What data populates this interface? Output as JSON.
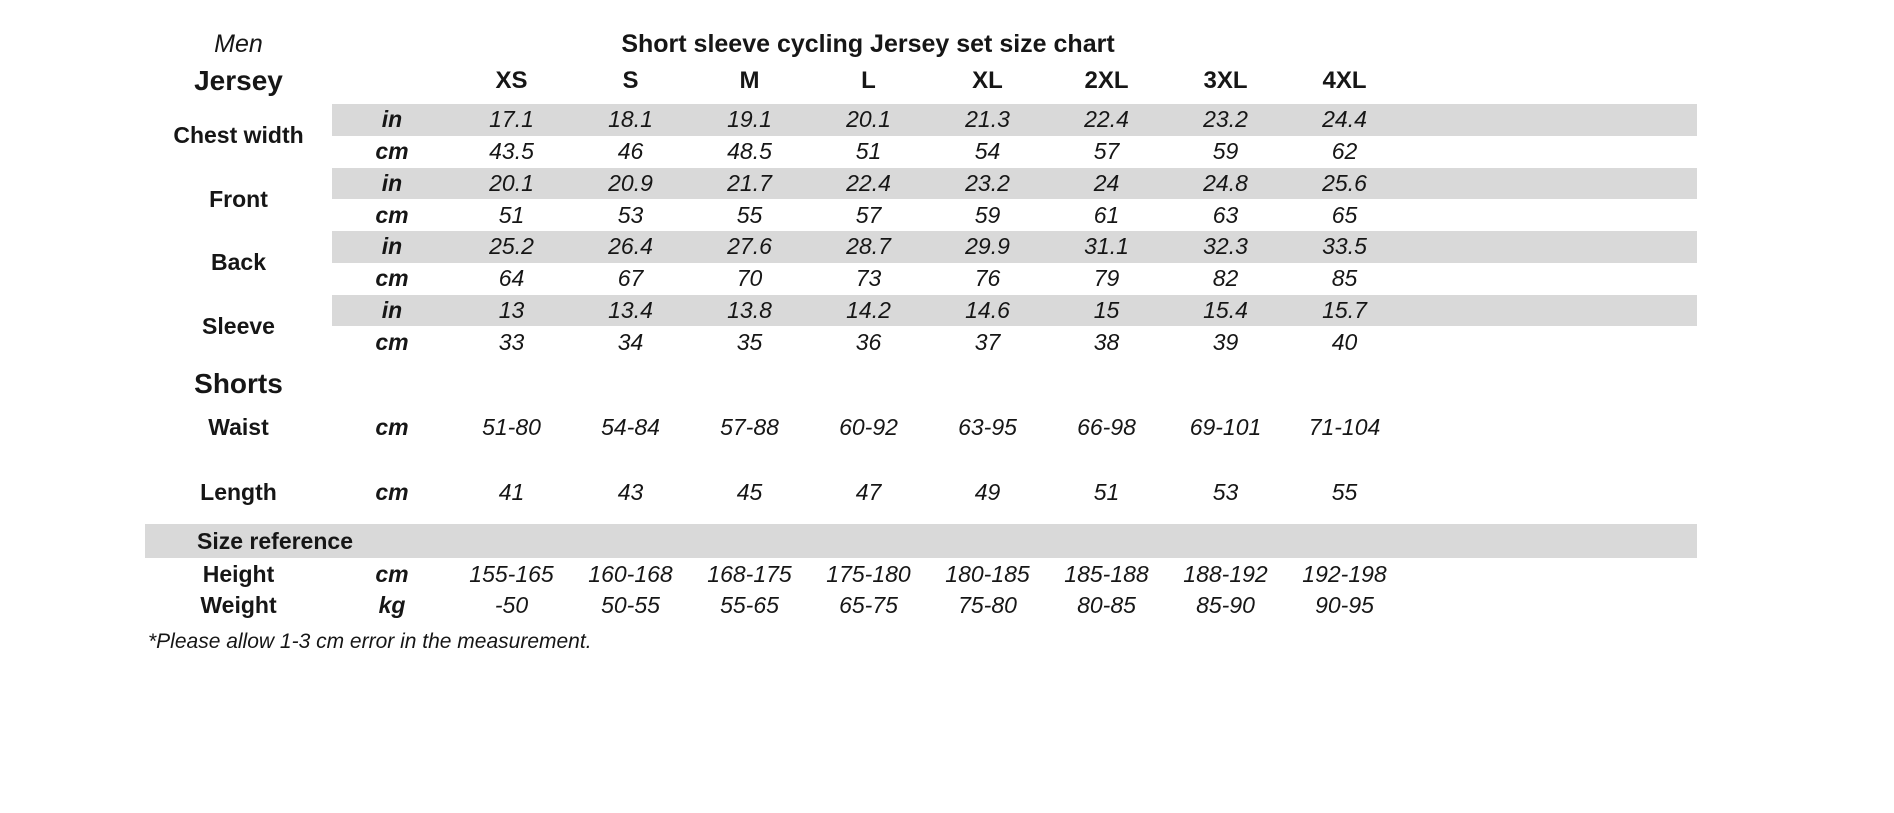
{
  "title": "Short sleeve cycling Jersey set size chart",
  "gender": "Men",
  "sizes": [
    "XS",
    "S",
    "M",
    "L",
    "XL",
    "2XL",
    "3XL",
    "4XL"
  ],
  "units": {
    "in": "in",
    "cm": "cm",
    "kg": "kg"
  },
  "jersey": {
    "label": "Jersey",
    "chest": {
      "label": "Chest width",
      "in": [
        "17.1",
        "18.1",
        "19.1",
        "20.1",
        "21.3",
        "22.4",
        "23.2",
        "24.4"
      ],
      "cm": [
        "43.5",
        "46",
        "48.5",
        "51",
        "54",
        "57",
        "59",
        "62"
      ]
    },
    "front": {
      "label": "Front",
      "in": [
        "20.1",
        "20.9",
        "21.7",
        "22.4",
        "23.2",
        "24",
        "24.8",
        "25.6"
      ],
      "cm": [
        "51",
        "53",
        "55",
        "57",
        "59",
        "61",
        "63",
        "65"
      ]
    },
    "back": {
      "label": "Back",
      "in": [
        "25.2",
        "26.4",
        "27.6",
        "28.7",
        "29.9",
        "31.1",
        "32.3",
        "33.5"
      ],
      "cm": [
        "64",
        "67",
        "70",
        "73",
        "76",
        "79",
        "82",
        "85"
      ]
    },
    "sleeve": {
      "label": "Sleeve",
      "in": [
        "13",
        "13.4",
        "13.8",
        "14.2",
        "14.6",
        "15",
        "15.4",
        "15.7"
      ],
      "cm": [
        "33",
        "34",
        "35",
        "36",
        "37",
        "38",
        "39",
        "40"
      ]
    }
  },
  "shorts": {
    "label": "Shorts",
    "waist": {
      "label": "Waist",
      "unit": "cm",
      "values": [
        "51-80",
        "54-84",
        "57-88",
        "60-92",
        "63-95",
        "66-98",
        "69-101",
        "71-104"
      ]
    },
    "length": {
      "label": "Length",
      "unit": "cm",
      "values": [
        "41",
        "43",
        "45",
        "47",
        "49",
        "51",
        "53",
        "55"
      ]
    }
  },
  "reference": {
    "label": "Size reference",
    "height": {
      "label": "Height",
      "unit": "cm",
      "values": [
        "155-165",
        "160-168",
        "168-175",
        "175-180",
        "180-185",
        "185-188",
        "188-192",
        "192-198"
      ]
    },
    "weight": {
      "label": "Weight",
      "unit": "kg",
      "values": [
        "-50",
        "50-55",
        "55-65",
        "65-75",
        "75-80",
        "80-85",
        "85-90",
        "90-95"
      ]
    }
  },
  "footnote": "*Please allow 1-3 cm error in the measurement.",
  "chart_data": {
    "type": "table",
    "title": "Short sleeve cycling Jersey set size chart",
    "columns": [
      "XS",
      "S",
      "M",
      "L",
      "XL",
      "2XL",
      "3XL",
      "4XL"
    ],
    "sections": [
      {
        "section": "Jersey",
        "rows": [
          {
            "label": "Chest width",
            "unit": "in",
            "values": [
              17.1,
              18.1,
              19.1,
              20.1,
              21.3,
              22.4,
              23.2,
              24.4
            ]
          },
          {
            "label": "Chest width",
            "unit": "cm",
            "values": [
              43.5,
              46,
              48.5,
              51,
              54,
              57,
              59,
              62
            ]
          },
          {
            "label": "Front",
            "unit": "in",
            "values": [
              20.1,
              20.9,
              21.7,
              22.4,
              23.2,
              24,
              24.8,
              25.6
            ]
          },
          {
            "label": "Front",
            "unit": "cm",
            "values": [
              51,
              53,
              55,
              57,
              59,
              61,
              63,
              65
            ]
          },
          {
            "label": "Back",
            "unit": "in",
            "values": [
              25.2,
              26.4,
              27.6,
              28.7,
              29.9,
              31.1,
              32.3,
              33.5
            ]
          },
          {
            "label": "Back",
            "unit": "cm",
            "values": [
              64,
              67,
              70,
              73,
              76,
              79,
              82,
              85
            ]
          },
          {
            "label": "Sleeve",
            "unit": "in",
            "values": [
              13,
              13.4,
              13.8,
              14.2,
              14.6,
              15,
              15.4,
              15.7
            ]
          },
          {
            "label": "Sleeve",
            "unit": "cm",
            "values": [
              33,
              34,
              35,
              36,
              37,
              38,
              39,
              40
            ]
          }
        ]
      },
      {
        "section": "Shorts",
        "rows": [
          {
            "label": "Waist",
            "unit": "cm",
            "values": [
              "51-80",
              "54-84",
              "57-88",
              "60-92",
              "63-95",
              "66-98",
              "69-101",
              "71-104"
            ]
          },
          {
            "label": "Length",
            "unit": "cm",
            "values": [
              41,
              43,
              45,
              47,
              49,
              51,
              53,
              55
            ]
          }
        ]
      },
      {
        "section": "Size reference",
        "rows": [
          {
            "label": "Height",
            "unit": "cm",
            "values": [
              "155-165",
              "160-168",
              "168-175",
              "175-180",
              "180-185",
              "185-188",
              "188-192",
              "192-198"
            ]
          },
          {
            "label": "Weight",
            "unit": "kg",
            "values": [
              "-50",
              "50-55",
              "55-65",
              "65-75",
              "75-80",
              "80-85",
              "85-90",
              "90-95"
            ]
          }
        ]
      }
    ],
    "footnote": "*Please allow 1-3 cm error in the measurement.",
    "layout": {
      "stripe_color": "#d9d9d9",
      "striped_rows": "unit-in rows and size-reference banner"
    }
  }
}
